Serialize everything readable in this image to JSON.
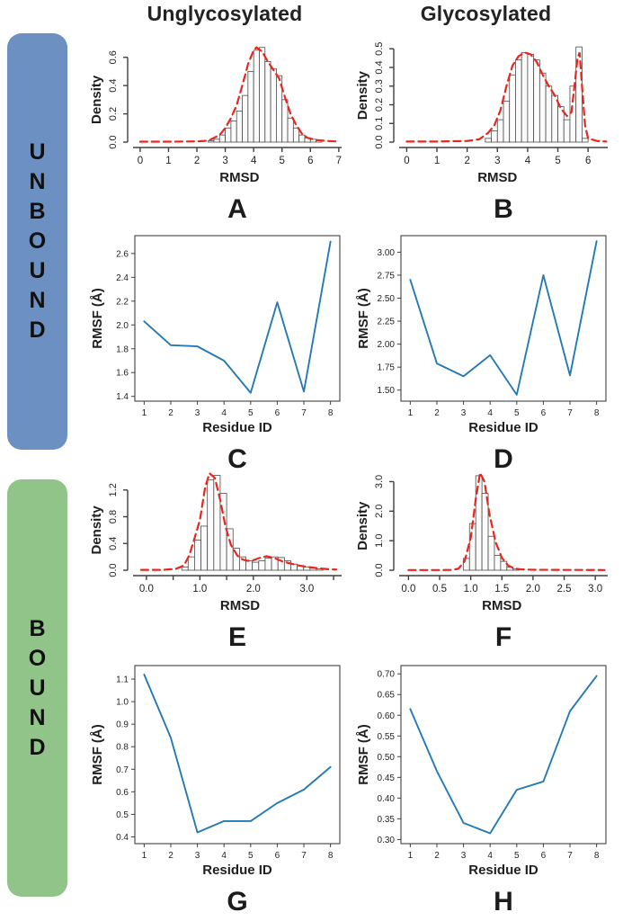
{
  "header": {
    "columns": [
      "Unglycosylated",
      "Glycosylated"
    ]
  },
  "sidebars": [
    {
      "id": "unbound",
      "label": "UNBOUND",
      "color": "#6d90c3"
    },
    {
      "id": "bound",
      "label": "BOUND",
      "color": "#90c488"
    }
  ],
  "style": {
    "axis_color": "#3f3f3f",
    "text_color": "#1f1f1f",
    "bar_fill": "#fbfbfb",
    "bar_stroke": "#4c4c4c",
    "curve_color": "#e9261d",
    "line_color": "#2579b5"
  },
  "chart_data": [
    {
      "id": "A",
      "panel_label": "A",
      "type": "histogram",
      "title": "",
      "xlabel": "RMSD",
      "ylabel": "Density",
      "xlim": [
        -0.25,
        7.1
      ],
      "ylim": [
        0,
        0.7
      ],
      "xticks": {
        "values": [
          0,
          1,
          2,
          3,
          4,
          5,
          6,
          7
        ],
        "labels": [
          "0",
          "1",
          "2",
          "3",
          "4",
          "5",
          "6",
          "7"
        ]
      },
      "yticks": {
        "values": [
          0,
          0.2,
          0.4,
          0.6
        ],
        "labels": [
          "0.0",
          "0.2",
          "0.4",
          "0.6"
        ]
      },
      "bins": {
        "start": 2.4,
        "width": 0.2,
        "heights": [
          0.01,
          0.02,
          0.05,
          0.1,
          0.15,
          0.22,
          0.33,
          0.5,
          0.65,
          0.67,
          0.57,
          0.52,
          0.47,
          0.3,
          0.17,
          0.1,
          0.05,
          0.03,
          0.02,
          0.01
        ]
      },
      "curve": [
        [
          0,
          0.003
        ],
        [
          1,
          0.003
        ],
        [
          2,
          0.005
        ],
        [
          2.4,
          0.01
        ],
        [
          2.8,
          0.05
        ],
        [
          3.0,
          0.1
        ],
        [
          3.2,
          0.17
        ],
        [
          3.4,
          0.26
        ],
        [
          3.6,
          0.4
        ],
        [
          3.8,
          0.55
        ],
        [
          4.0,
          0.65
        ],
        [
          4.1,
          0.67
        ],
        [
          4.3,
          0.64
        ],
        [
          4.5,
          0.57
        ],
        [
          4.7,
          0.51
        ],
        [
          4.9,
          0.45
        ],
        [
          5.1,
          0.32
        ],
        [
          5.3,
          0.2
        ],
        [
          5.5,
          0.12
        ],
        [
          5.7,
          0.06
        ],
        [
          5.9,
          0.03
        ],
        [
          6.2,
          0.015
        ],
        [
          6.6,
          0.008
        ],
        [
          6.9,
          0.005
        ]
      ]
    },
    {
      "id": "B",
      "panel_label": "B",
      "type": "histogram",
      "title": "",
      "xlabel": "RMSD",
      "ylabel": "Density",
      "xlim": [
        -0.25,
        6.65
      ],
      "ylim": [
        0,
        0.53
      ],
      "xticks": {
        "values": [
          0,
          1,
          2,
          3,
          4,
          5,
          6
        ],
        "labels": [
          "0",
          "1",
          "2",
          "3",
          "4",
          "5",
          "6"
        ]
      },
      "yticks": {
        "values": [
          0,
          0.1,
          0.2,
          0.3,
          0.4,
          0.5
        ],
        "labels": [
          "0.0",
          "0.1",
          "0.2",
          "0.3",
          "0.4",
          "0.5"
        ]
      },
      "bins": {
        "start": 2.6,
        "width": 0.2,
        "heights": [
          0.02,
          0.06,
          0.12,
          0.22,
          0.36,
          0.44,
          0.48,
          0.47,
          0.44,
          0.37,
          0.3,
          0.25,
          0.19,
          0.12,
          0.3,
          0.51,
          0.02
        ]
      },
      "curve": [
        [
          0,
          0.003
        ],
        [
          1,
          0.003
        ],
        [
          2,
          0.006
        ],
        [
          2.4,
          0.015
        ],
        [
          2.7,
          0.05
        ],
        [
          2.9,
          0.09
        ],
        [
          3.1,
          0.17
        ],
        [
          3.3,
          0.3
        ],
        [
          3.5,
          0.41
        ],
        [
          3.7,
          0.46
        ],
        [
          3.9,
          0.48
        ],
        [
          4.1,
          0.47
        ],
        [
          4.3,
          0.43
        ],
        [
          4.5,
          0.36
        ],
        [
          4.7,
          0.3
        ],
        [
          4.9,
          0.25
        ],
        [
          5.1,
          0.18
        ],
        [
          5.3,
          0.14
        ],
        [
          5.45,
          0.16
        ],
        [
          5.55,
          0.3
        ],
        [
          5.65,
          0.45
        ],
        [
          5.72,
          0.48
        ],
        [
          5.8,
          0.3
        ],
        [
          5.9,
          0.09
        ],
        [
          6.0,
          0.02
        ],
        [
          6.3,
          0.006
        ],
        [
          6.6,
          0.003
        ]
      ]
    },
    {
      "id": "C",
      "panel_label": "C",
      "type": "line",
      "title": "",
      "xlabel": "Residue ID",
      "ylabel": "RMSF (Å)",
      "xlim": [
        0.65,
        8.35
      ],
      "ylim": [
        1.36,
        2.75
      ],
      "xticks": {
        "values": [
          1,
          2,
          3,
          4,
          5,
          6,
          7,
          8
        ],
        "labels": [
          "1",
          "2",
          "3",
          "4",
          "5",
          "6",
          "7",
          "8"
        ]
      },
      "yticks": {
        "values": [
          1.4,
          1.6,
          1.8,
          2.0,
          2.2,
          2.4,
          2.6
        ],
        "labels": [
          "1.4",
          "1.6",
          "1.8",
          "2.0",
          "2.2",
          "2.4",
          "2.6"
        ]
      },
      "x": [
        1,
        2,
        3,
        4,
        5,
        6,
        7,
        8
      ],
      "y": [
        2.03,
        1.83,
        1.82,
        1.7,
        1.43,
        2.19,
        1.44,
        2.7
      ]
    },
    {
      "id": "D",
      "panel_label": "D",
      "type": "line",
      "title": "",
      "xlabel": "Residue ID",
      "ylabel": "RMSF (Å)",
      "xlim": [
        0.65,
        8.35
      ],
      "ylim": [
        1.38,
        3.18
      ],
      "xticks": {
        "values": [
          1,
          2,
          3,
          4,
          5,
          6,
          7,
          8
        ],
        "labels": [
          "1",
          "2",
          "3",
          "4",
          "5",
          "6",
          "7",
          "8"
        ]
      },
      "yticks": {
        "values": [
          1.5,
          1.75,
          2.0,
          2.25,
          2.5,
          2.75,
          3.0
        ],
        "labels": [
          "1.50",
          "1.75",
          "2.00",
          "2.25",
          "2.50",
          "2.75",
          "3.00"
        ]
      },
      "x": [
        1,
        2,
        3,
        4,
        5,
        6,
        7,
        8
      ],
      "y": [
        2.7,
        1.79,
        1.65,
        1.88,
        1.45,
        2.75,
        1.66,
        3.12
      ]
    },
    {
      "id": "E",
      "panel_label": "E",
      "type": "histogram",
      "title": "",
      "xlabel": "RMSD",
      "ylabel": "Density",
      "xlim": [
        -0.25,
        3.65
      ],
      "ylim": [
        0,
        1.48
      ],
      "xticks": {
        "values": [
          0,
          0.5,
          1,
          1.5,
          2,
          2.5,
          3,
          3.5
        ],
        "labels": [
          "0.0",
          "",
          "1.0",
          "",
          "2.0",
          "",
          "3.0",
          ""
        ]
      },
      "yticks": {
        "values": [
          0,
          0.4,
          0.8,
          1.2
        ],
        "labels": [
          "0.0",
          "0.4",
          "0.8",
          "1.2"
        ]
      },
      "bins": {
        "start": 0.66,
        "width": 0.12,
        "heights": [
          0.05,
          0.2,
          0.45,
          0.66,
          1.35,
          1.42,
          1.15,
          0.62,
          0.33,
          0.2,
          0.14,
          0.12,
          0.14,
          0.18,
          0.2,
          0.19,
          0.14,
          0.09,
          0.07,
          0.05,
          0.03,
          0.02
        ]
      },
      "curve": [
        [
          -0.1,
          0.005
        ],
        [
          0.3,
          0.005
        ],
        [
          0.55,
          0.02
        ],
        [
          0.7,
          0.07
        ],
        [
          0.8,
          0.22
        ],
        [
          0.9,
          0.48
        ],
        [
          1.0,
          0.75
        ],
        [
          1.1,
          1.25
        ],
        [
          1.18,
          1.45
        ],
        [
          1.28,
          1.38
        ],
        [
          1.38,
          1.05
        ],
        [
          1.48,
          0.65
        ],
        [
          1.58,
          0.38
        ],
        [
          1.7,
          0.22
        ],
        [
          1.8,
          0.16
        ],
        [
          1.9,
          0.14
        ],
        [
          2.0,
          0.15
        ],
        [
          2.1,
          0.18
        ],
        [
          2.25,
          0.21
        ],
        [
          2.4,
          0.18
        ],
        [
          2.55,
          0.13
        ],
        [
          2.7,
          0.1
        ],
        [
          2.85,
          0.07
        ],
        [
          3.0,
          0.05
        ],
        [
          3.2,
          0.03
        ],
        [
          3.4,
          0.015
        ],
        [
          3.55,
          0.01
        ]
      ]
    },
    {
      "id": "F",
      "panel_label": "F",
      "type": "histogram",
      "title": "",
      "xlabel": "RMSD",
      "ylabel": "Density",
      "xlim": [
        -0.15,
        3.2
      ],
      "ylim": [
        0,
        3.35
      ],
      "xticks": {
        "values": [
          0,
          0.5,
          1,
          1.5,
          2,
          2.5,
          3
        ],
        "labels": [
          "0.0",
          "0.5",
          "1.0",
          "1.5",
          "2.0",
          "2.5",
          "3.0"
        ]
      },
      "yticks": {
        "values": [
          0,
          1,
          2,
          3
        ],
        "labels": [
          "0.0",
          "1.0",
          "2.0",
          "3.0"
        ]
      },
      "bins": {
        "start": 0.88,
        "width": 0.1,
        "heights": [
          0.4,
          1.58,
          3.2,
          2.6,
          1.15,
          0.5,
          0.3,
          0.1,
          0.04
        ]
      },
      "curve": [
        [
          0,
          0.005
        ],
        [
          0.5,
          0.005
        ],
        [
          0.7,
          0.01
        ],
        [
          0.8,
          0.05
        ],
        [
          0.9,
          0.3
        ],
        [
          1.0,
          1.1
        ],
        [
          1.08,
          2.4
        ],
        [
          1.15,
          3.3
        ],
        [
          1.22,
          3.0
        ],
        [
          1.3,
          1.9
        ],
        [
          1.4,
          0.95
        ],
        [
          1.5,
          0.42
        ],
        [
          1.6,
          0.16
        ],
        [
          1.7,
          0.06
        ],
        [
          1.8,
          0.03
        ],
        [
          2.0,
          0.015
        ],
        [
          2.5,
          0.01
        ],
        [
          3.0,
          0.008
        ],
        [
          3.15,
          0.005
        ]
      ]
    },
    {
      "id": "G",
      "panel_label": "G",
      "type": "line",
      "title": "",
      "xlabel": "Residue ID",
      "ylabel": "RMSF (Å)",
      "xlim": [
        0.65,
        8.35
      ],
      "ylim": [
        0.37,
        1.16
      ],
      "xticks": {
        "values": [
          1,
          2,
          3,
          4,
          5,
          6,
          7,
          8
        ],
        "labels": [
          "1",
          "2",
          "3",
          "4",
          "5",
          "6",
          "7",
          "8"
        ]
      },
      "yticks": {
        "values": [
          0.4,
          0.5,
          0.6,
          0.7,
          0.8,
          0.9,
          1.0,
          1.1
        ],
        "labels": [
          "0.4",
          "0.5",
          "0.6",
          "0.7",
          "0.8",
          "0.9",
          "1.0",
          "1.1"
        ]
      },
      "x": [
        1,
        2,
        3,
        4,
        5,
        6,
        7,
        8
      ],
      "y": [
        1.12,
        0.84,
        0.42,
        0.47,
        0.47,
        0.55,
        0.61,
        0.71
      ]
    },
    {
      "id": "H",
      "panel_label": "H",
      "type": "line",
      "title": "",
      "xlabel": "Residue ID",
      "ylabel": "RMSF (Å)",
      "xlim": [
        0.65,
        8.35
      ],
      "ylim": [
        0.29,
        0.72
      ],
      "xticks": {
        "values": [
          1,
          2,
          3,
          4,
          5,
          6,
          7,
          8
        ],
        "labels": [
          "1",
          "2",
          "3",
          "4",
          "5",
          "6",
          "7",
          "8"
        ]
      },
      "yticks": {
        "values": [
          0.3,
          0.35,
          0.4,
          0.45,
          0.5,
          0.55,
          0.6,
          0.65,
          0.7
        ],
        "labels": [
          "0.30",
          "0.35",
          "0.40",
          "0.45",
          "0.50",
          "0.55",
          "0.60",
          "0.65",
          "0.70"
        ]
      },
      "x": [
        1,
        2,
        3,
        4,
        5,
        6,
        7,
        8
      ],
      "y": [
        0.615,
        0.465,
        0.34,
        0.315,
        0.42,
        0.44,
        0.61,
        0.695
      ]
    }
  ]
}
